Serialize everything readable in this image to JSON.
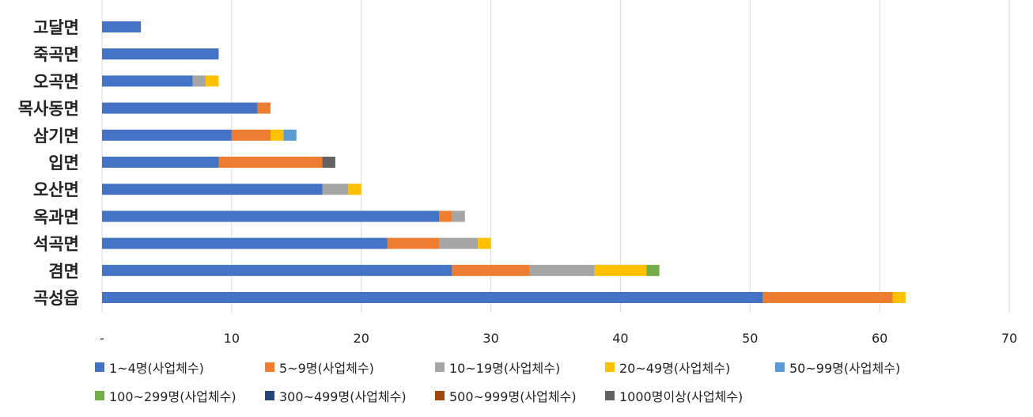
{
  "chart_data": {
    "type": "bar",
    "orientation": "horizontal",
    "stacked": true,
    "title": "",
    "xlabel": "",
    "ylabel": "",
    "xlim": [
      0,
      70
    ],
    "x_ticks": [
      "-",
      "10",
      "20",
      "30",
      "40",
      "50",
      "60",
      "70"
    ],
    "grid": true,
    "legend_position": "bottom",
    "categories": [
      "고달면",
      "죽곡면",
      "오곡면",
      "목사동면",
      "삼기면",
      "입면",
      "오산면",
      "옥과면",
      "석곡면",
      "겸면",
      "곡성읍"
    ],
    "series": [
      {
        "name": "1~4명(사업체수)",
        "color": "#4472C4",
        "values": [
          3,
          9,
          7,
          12,
          10,
          9,
          17,
          26,
          22,
          27,
          51
        ]
      },
      {
        "name": "5~9명(사업체수)",
        "color": "#ED7D31",
        "values": [
          0,
          0,
          0,
          1,
          3,
          8,
          0,
          1,
          4,
          6,
          10
        ]
      },
      {
        "name": "10~19명(사업체수)",
        "color": "#A5A5A5",
        "values": [
          0,
          0,
          1,
          0,
          0,
          0,
          2,
          1,
          3,
          5,
          0
        ]
      },
      {
        "name": "20~49명(사업체수)",
        "color": "#FFC000",
        "values": [
          0,
          0,
          1,
          0,
          1,
          0,
          1,
          0,
          1,
          4,
          1
        ]
      },
      {
        "name": "50~99명(사업체수)",
        "color": "#5B9BD5",
        "values": [
          0,
          0,
          0,
          0,
          1,
          0,
          0,
          0,
          0,
          0,
          0
        ]
      },
      {
        "name": "100~299명(사업체수)",
        "color": "#70AD47",
        "values": [
          0,
          0,
          0,
          0,
          0,
          0,
          0,
          0,
          0,
          1,
          0
        ]
      },
      {
        "name": "300~499명(사업체수)",
        "color": "#264478",
        "values": [
          0,
          0,
          0,
          0,
          0,
          0,
          0,
          0,
          0,
          0,
          0
        ]
      },
      {
        "name": "500~999명(사업체수)",
        "color": "#9E480E",
        "values": [
          0,
          0,
          0,
          0,
          0,
          0,
          0,
          0,
          0,
          0,
          0
        ]
      },
      {
        "name": "1000명이상(사업체수)",
        "color": "#636363",
        "values": [
          0,
          0,
          0,
          0,
          0,
          1,
          0,
          0,
          0,
          0,
          0
        ]
      }
    ]
  }
}
